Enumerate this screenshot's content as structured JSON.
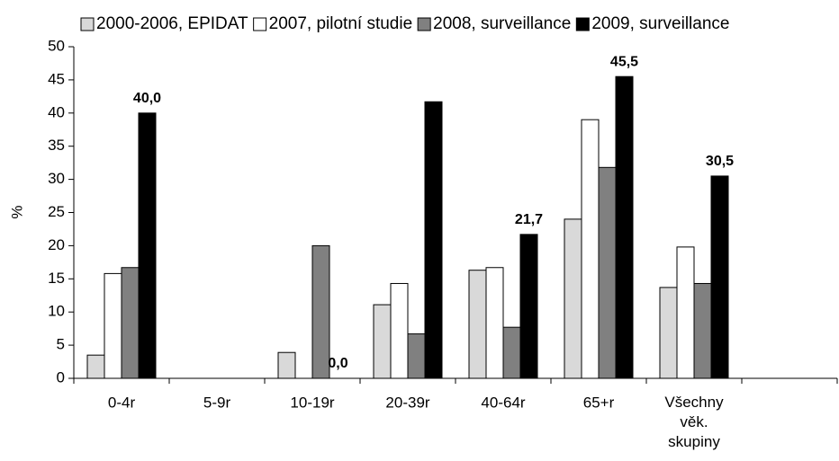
{
  "chart_data": {
    "type": "bar",
    "y_label": "%",
    "categories": [
      "0-4r",
      "5-9r",
      "10-19r",
      "20-39r",
      "40-64r",
      "65+r",
      "Všechny věk. skupiny",
      null
    ],
    "series": [
      {
        "name": "2000-2006, EPIDAT",
        "color": "#d9d9d9",
        "values": [
          3.5,
          0,
          3.9,
          11.1,
          16.3,
          24.0,
          13.7,
          null
        ]
      },
      {
        "name": "2007, pilotní studie",
        "color": "#ffffff",
        "values": [
          15.8,
          0,
          0,
          14.3,
          16.7,
          39.0,
          19.8,
          null
        ]
      },
      {
        "name": "2008, surveillance",
        "color": "#808080",
        "values": [
          16.7,
          0,
          20.0,
          6.7,
          7.7,
          31.8,
          14.3,
          null
        ]
      },
      {
        "name": "2009, surveillance",
        "color": "#000000",
        "values": [
          40.0,
          0,
          0.0,
          41.7,
          21.7,
          45.5,
          30.5,
          null
        ],
        "value_labels": [
          "40,0",
          null,
          "0,0",
          null,
          "21,7",
          "45,5",
          "30,5",
          null
        ]
      }
    ],
    "ylim": [
      0,
      50
    ],
    "yticks": [
      0,
      5,
      10,
      15,
      20,
      25,
      30,
      35,
      40,
      45,
      50
    ],
    "legend": "top"
  }
}
